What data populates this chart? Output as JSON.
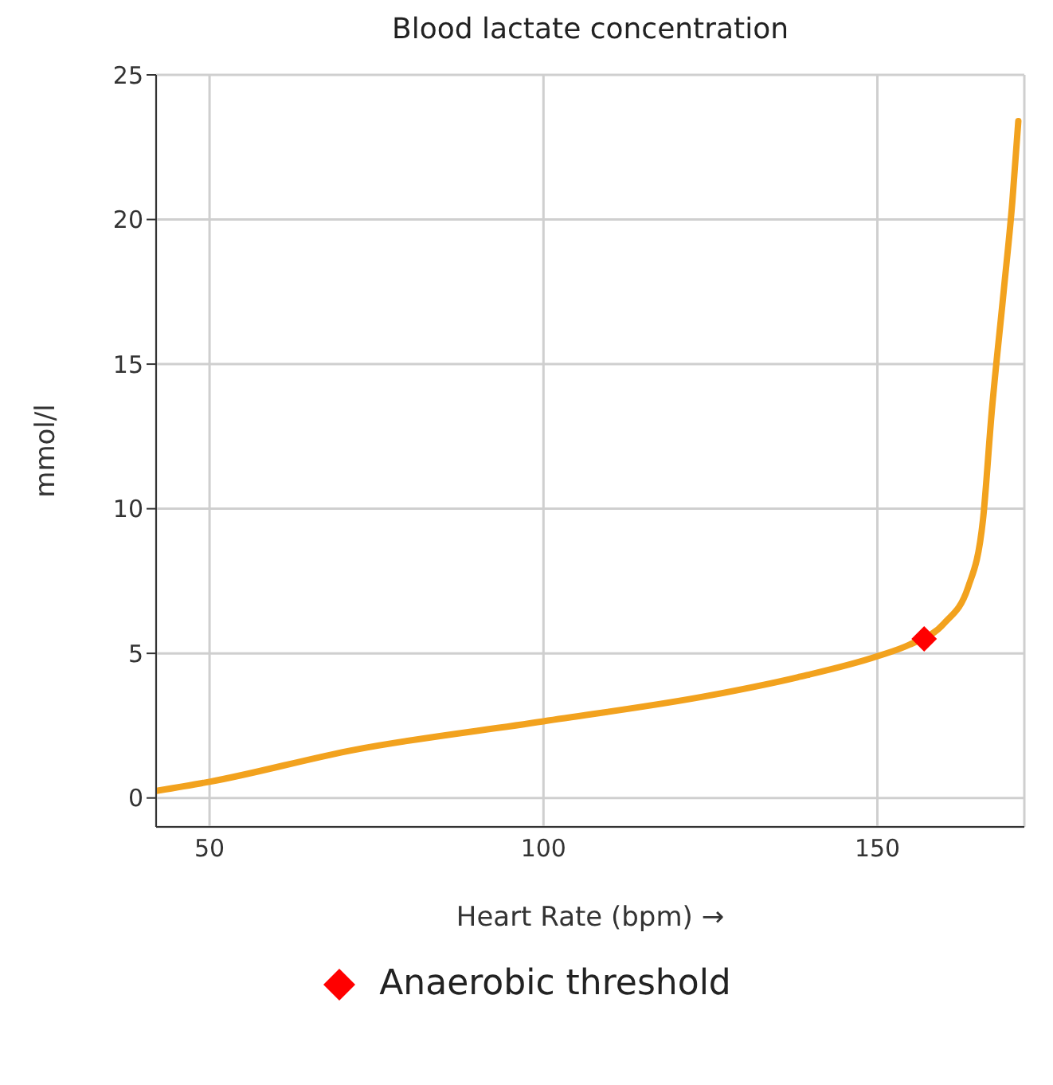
{
  "chart_data": {
    "type": "line",
    "title": "Blood lactate concentration",
    "xlabel": "Heart Rate (bpm) →",
    "ylabel": "mmol/l",
    "xlim": [
      42,
      172
    ],
    "xticks": [
      50,
      100,
      150
    ],
    "ylim": [
      -1,
      25
    ],
    "yticks": [
      0,
      5,
      10,
      15,
      20,
      25
    ],
    "grid": true,
    "legend": "bottom",
    "series": [
      {
        "color": "#f2a21e",
        "marker": "none",
        "x": [
          42.2,
          50,
          71.8,
          100,
          124.8,
          138,
          150,
          154.8,
          160,
          163.6,
          165.8,
          167.1,
          168.9,
          170.2,
          171.1
        ],
        "values": [
          0.25,
          0.56,
          1.67,
          2.65,
          3.54,
          4.17,
          4.9,
          5.3,
          6.04,
          7.3,
          9.6,
          13.3,
          17.5,
          20.6,
          23.4
        ]
      },
      {
        "type": "scatter",
        "name": "Anaerobic threshold",
        "color": "#ff0000",
        "marker": "diamond",
        "x": [
          157
        ],
        "values": [
          5.5
        ]
      }
    ]
  }
}
